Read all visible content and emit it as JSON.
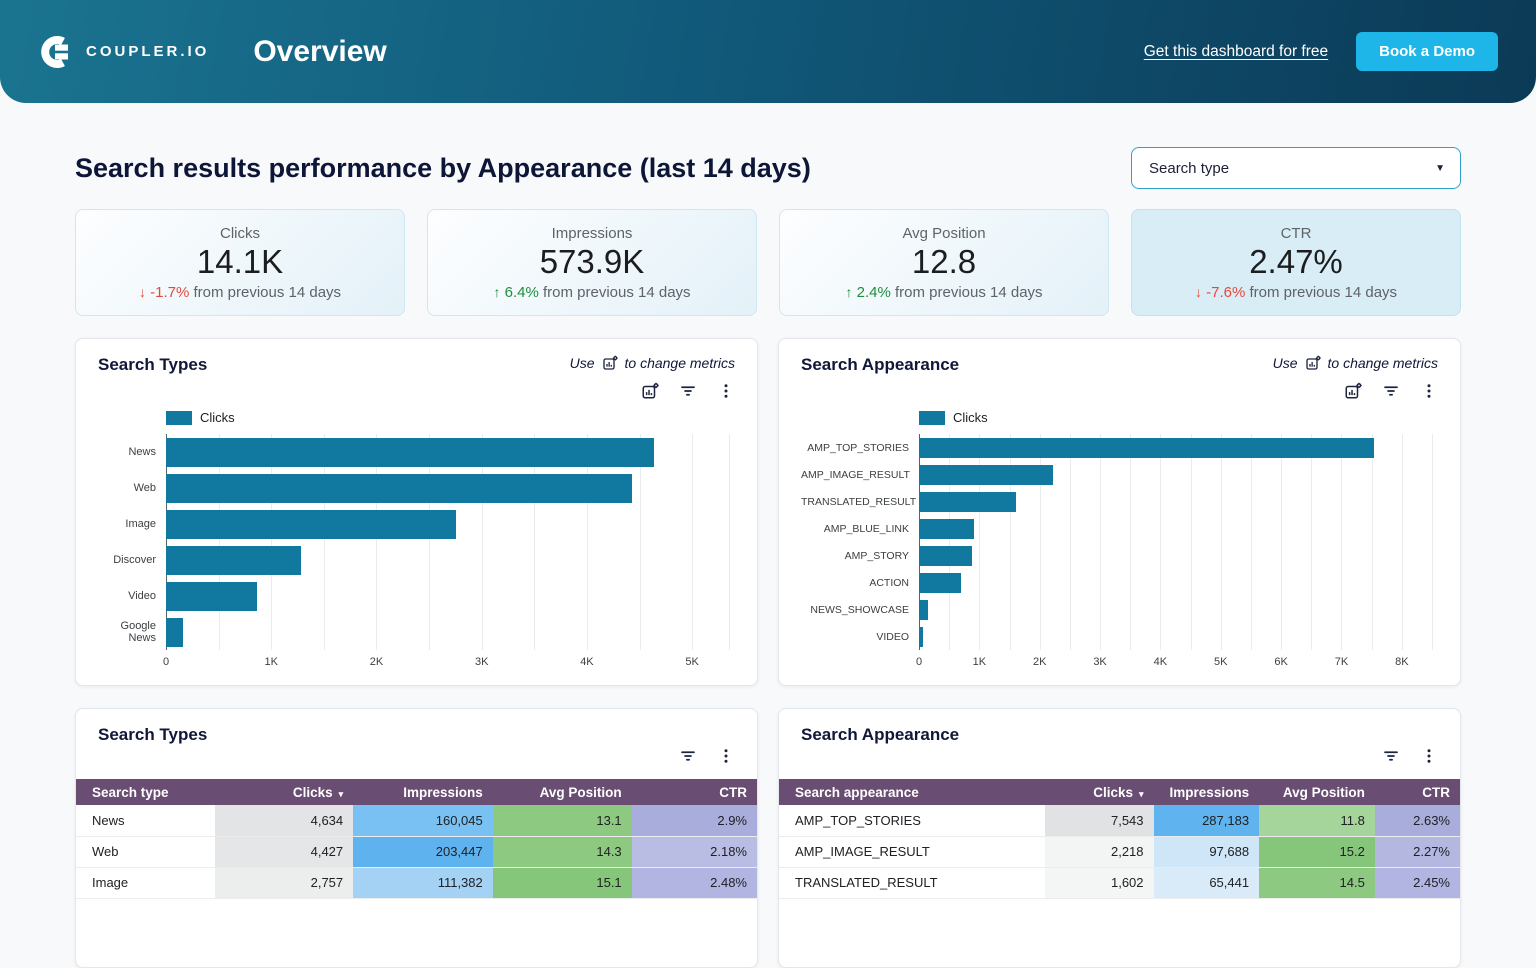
{
  "header": {
    "brand": "COUPLER.IO",
    "title": "Overview",
    "link_label": "Get this dashboard for free",
    "cta_label": "Book a Demo"
  },
  "page": {
    "title": "Search results performance by Appearance (last 14 days)"
  },
  "filter": {
    "label": "Search type"
  },
  "kpis": [
    {
      "label": "Clicks",
      "value": "14.1K",
      "delta": "-1.7%",
      "direction": "down",
      "period": "from previous 14 days",
      "highlighted": false
    },
    {
      "label": "Impressions",
      "value": "573.9K",
      "delta": "6.4%",
      "direction": "up",
      "period": "from previous 14 days",
      "highlighted": false
    },
    {
      "label": "Avg Position",
      "value": "12.8",
      "delta": "2.4%",
      "direction": "up",
      "period": "from previous 14 days",
      "highlighted": false
    },
    {
      "label": "CTR",
      "value": "2.47%",
      "delta": "-7.6%",
      "direction": "down",
      "period": "from previous 14 days",
      "highlighted": true
    }
  ],
  "chart_cards": [
    {
      "title": "Search Types",
      "hint_prefix": "Use",
      "hint_suffix": "to change metrics",
      "legend": "Clicks"
    },
    {
      "title": "Search Appearance",
      "hint_prefix": "Use",
      "hint_suffix": "to change metrics",
      "legend": "Clicks"
    }
  ],
  "chart_data": [
    {
      "type": "bar",
      "orientation": "horizontal",
      "title": "Search Types",
      "legend": [
        "Clicks"
      ],
      "legend_position": "top",
      "grid": true,
      "categories": [
        "News",
        "Web",
        "Image",
        "Discover",
        "Video",
        "Google News"
      ],
      "values": [
        4634,
        4427,
        2757,
        1280,
        865,
        160
      ],
      "xlim": [
        0,
        5350
      ],
      "grid_step": 500,
      "xticks": [
        0,
        1000,
        2000,
        3000,
        4000,
        5000
      ],
      "tick_labels": [
        "0",
        "1K",
        "2K",
        "3K",
        "4K",
        "5K"
      ],
      "bar_color": "#1179a0"
    },
    {
      "type": "bar",
      "orientation": "horizontal",
      "title": "Search Appearance",
      "legend": [
        "Clicks"
      ],
      "legend_position": "top",
      "grid": true,
      "categories": [
        "AMP_TOP_STORIES",
        "AMP_IMAGE_RESULT",
        "TRANSLATED_RESULT",
        "AMP_BLUE_LINK",
        "AMP_STORY",
        "ACTION",
        "NEWS_SHOWCASE",
        "VIDEO"
      ],
      "values": [
        7543,
        2218,
        1602,
        906,
        874,
        696,
        146,
        65
      ],
      "xlim": [
        0,
        8500
      ],
      "grid_step": 500,
      "xticks": [
        0,
        1000,
        2000,
        3000,
        4000,
        5000,
        6000,
        7000,
        8000
      ],
      "tick_labels": [
        "0",
        "1K",
        "2K",
        "3K",
        "4K",
        "5K",
        "6K",
        "7K",
        "8K"
      ],
      "bar_color": "#1179a0"
    }
  ],
  "tables": [
    {
      "title": "Search Types",
      "columns": [
        "Search type",
        "Clicks",
        "Impressions",
        "Avg Position",
        "CTR"
      ],
      "sorted_by": "Clicks",
      "rows": [
        {
          "cells": [
            "News",
            "4,634",
            "160,045",
            "13.1",
            "2.9%"
          ],
          "colors": [
            "#ffffff",
            "#e3e4e5",
            "#79c1f2",
            "#8dc981",
            "#a9addc"
          ]
        },
        {
          "cells": [
            "Web",
            "4,427",
            "203,447",
            "14.3",
            "2.18%"
          ],
          "colors": [
            "#ffffff",
            "#e5e6e7",
            "#5eb3ef",
            "#8dc981",
            "#b9bde3"
          ]
        },
        {
          "cells": [
            "Image",
            "2,757",
            "111,382",
            "15.1",
            "2.48%"
          ],
          "colors": [
            "#ffffff",
            "#eceded",
            "#a3d2f5",
            "#86c67a",
            "#b2b5e1"
          ]
        }
      ]
    },
    {
      "title": "Search Appearance",
      "columns": [
        "Search appearance",
        "Clicks",
        "Impressions",
        "Avg Position",
        "CTR"
      ],
      "sorted_by": "Clicks",
      "rows": [
        {
          "cells": [
            "AMP_TOP_STORIES",
            "7,543",
            "287,183",
            "11.8",
            "2.63%"
          ],
          "colors": [
            "#ffffff",
            "#e1e2e3",
            "#5fb4f0",
            "#a5d59b",
            "#a9addc"
          ]
        },
        {
          "cells": [
            "AMP_IMAGE_RESULT",
            "2,218",
            "97,688",
            "15.2",
            "2.27%"
          ],
          "colors": [
            "#ffffff",
            "#f3f4f4",
            "#cfe5f8",
            "#86c67a",
            "#b4b8e1"
          ]
        },
        {
          "cells": [
            "TRANSLATED_RESULT",
            "1,602",
            "65,441",
            "14.5",
            "2.45%"
          ],
          "colors": [
            "#ffffff",
            "#f4f5f5",
            "#d9ebf9",
            "#8dc981",
            "#b2b5e1"
          ]
        }
      ]
    }
  ],
  "colors": {
    "bar": "#1179a0",
    "accent_cyan": "#1eb5e9",
    "table_header": "#6a4d72",
    "positive": "#1e8e3e",
    "negative": "#e5493d"
  }
}
